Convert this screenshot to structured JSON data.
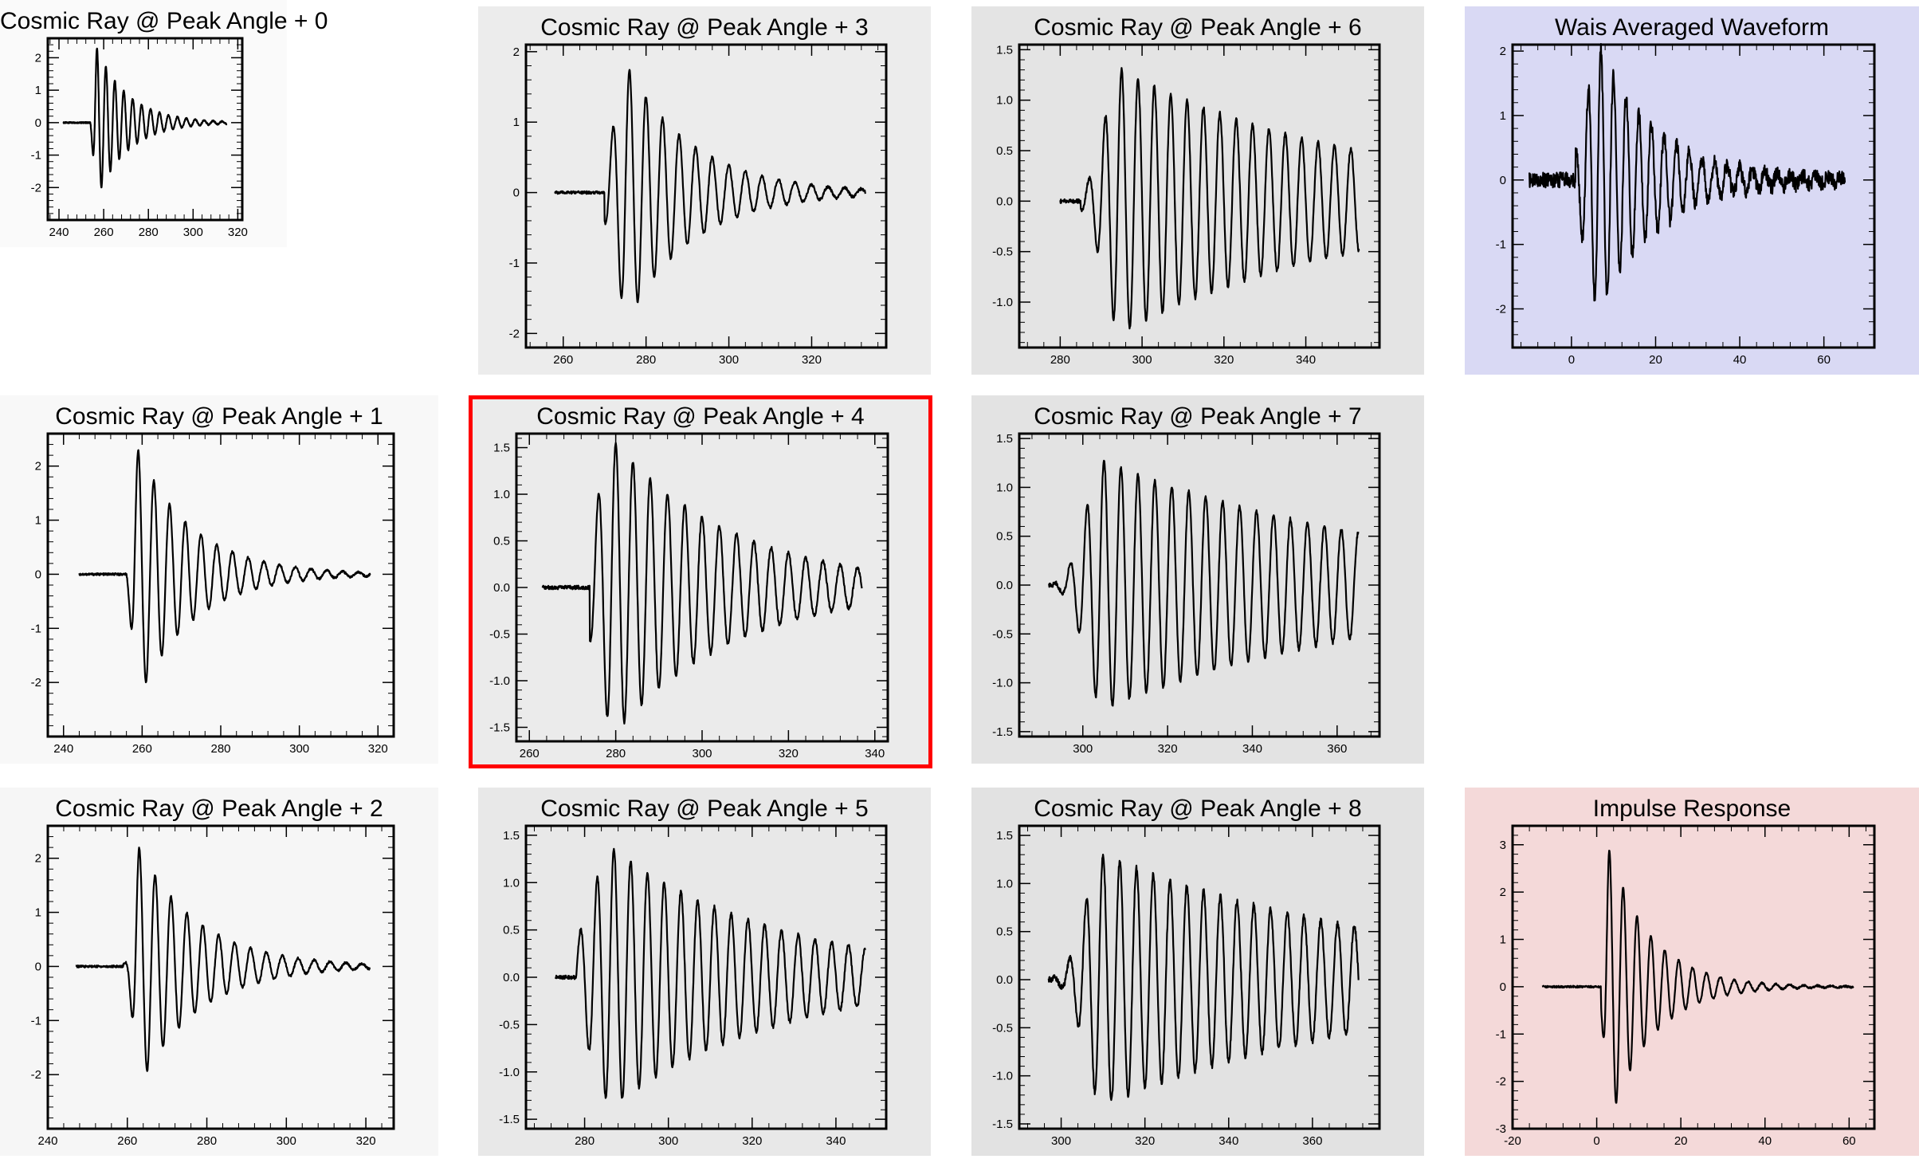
{
  "colors": {
    "highlight": "#ff0000",
    "trace": "#000000"
  },
  "chart_data": [
    {
      "id": 0,
      "type": "line",
      "title": "Cosmic Ray @ Peak Angle + 0",
      "background": "#fafafa",
      "xlim": [
        235,
        322
      ],
      "ylim": [
        -3,
        2.6
      ],
      "xticks": [
        "240",
        "260",
        "280",
        "300",
        "320"
      ],
      "yticks": [
        "2",
        "1",
        "0",
        "-1",
        "-2"
      ],
      "ytick_values": [
        2,
        1,
        0,
        -1,
        -2
      ],
      "xtick_values": [
        240,
        260,
        280,
        300,
        320
      ],
      "wave": {
        "x_start": 242,
        "x_onset": 254,
        "peak_x": 257,
        "period": 4.0,
        "amp": 2.3,
        "decay": 14,
        "x_end": 315,
        "rise": 2,
        "noise": 0.02
      }
    },
    {
      "id": 1,
      "type": "line",
      "title": "Cosmic Ray @ Peak Angle + 1",
      "background": "#f8f8f8",
      "xlim": [
        236,
        324
      ],
      "ylim": [
        -3,
        2.6
      ],
      "xticks": [
        "240",
        "260",
        "280",
        "300",
        "320"
      ],
      "yticks": [
        "2",
        "1",
        "0",
        "-1",
        "-2"
      ],
      "ytick_values": [
        2,
        1,
        0,
        -1,
        -2
      ],
      "xtick_values": [
        240,
        260,
        280,
        300,
        320
      ],
      "wave": {
        "x_start": 244,
        "x_onset": 256,
        "peak_x": 259,
        "period": 4.0,
        "amp": 2.3,
        "decay": 14,
        "x_end": 318,
        "rise": 2,
        "noise": 0.02
      }
    },
    {
      "id": 2,
      "type": "line",
      "title": "Cosmic Ray @ Peak Angle + 2",
      "background": "#f6f6f6",
      "xlim": [
        240,
        327
      ],
      "ylim": [
        -3,
        2.6
      ],
      "xticks": [
        "240",
        "260",
        "280",
        "300",
        "320"
      ],
      "yticks": [
        "2",
        "1",
        "0",
        "-1",
        "-2"
      ],
      "ytick_values": [
        2,
        1,
        0,
        -1,
        -2
      ],
      "xtick_values": [
        240,
        260,
        280,
        300,
        320
      ],
      "wave": {
        "x_start": 247,
        "x_onset": 259,
        "peak_x": 263,
        "period": 4.0,
        "amp": 2.2,
        "decay": 15,
        "x_end": 321,
        "rise": 2,
        "noise": 0.02
      }
    },
    {
      "id": 3,
      "type": "line",
      "title": "Cosmic Ray @ Peak Angle + 3",
      "background": "#ececec",
      "xlim": [
        251,
        338
      ],
      "ylim": [
        -2.2,
        2.1
      ],
      "xticks": [
        "260",
        "280",
        "300",
        "320"
      ],
      "yticks": [
        "2",
        "1",
        "0",
        "-1",
        "-2"
      ],
      "ytick_values": [
        2,
        1,
        0,
        -1,
        -2
      ],
      "xtick_values": [
        260,
        280,
        300,
        320
      ],
      "wave": {
        "x_start": 258,
        "x_onset": 270,
        "peak_x": 276,
        "period": 4.0,
        "amp": 1.75,
        "decay": 16,
        "x_end": 333,
        "rise": 5,
        "noise": 0.02
      }
    },
    {
      "id": 4,
      "type": "line",
      "title": "Cosmic Ray @ Peak Angle + 4",
      "background": "#ebebeb",
      "xlim": [
        257,
        343
      ],
      "ylim": [
        -1.65,
        1.65
      ],
      "xticks": [
        "260",
        "280",
        "300",
        "320",
        "340"
      ],
      "yticks": [
        "1.5",
        "1.0",
        "0.5",
        "0.0",
        "-0.5",
        "-1.0",
        "-1.5"
      ],
      "ytick_values": [
        1.5,
        1.0,
        0.5,
        0.0,
        -0.5,
        -1.0,
        -1.5
      ],
      "xtick_values": [
        260,
        280,
        300,
        320,
        340
      ],
      "wave": {
        "x_start": 263,
        "x_onset": 274,
        "peak_x": 280,
        "period": 4.0,
        "amp": 1.55,
        "decay": 28,
        "x_end": 337,
        "rise": 6,
        "noise": 0.02
      }
    },
    {
      "id": 5,
      "type": "line",
      "title": "Cosmic Ray @ Peak Angle + 5",
      "background": "#e8e8e8",
      "xlim": [
        266,
        352
      ],
      "ylim": [
        -1.6,
        1.6
      ],
      "xticks": [
        "280",
        "300",
        "320",
        "340"
      ],
      "yticks": [
        "1.5",
        "1.0",
        "0.5",
        "0.0",
        "-0.5",
        "-1.0",
        "-1.5"
      ],
      "ytick_values": [
        1.5,
        1.0,
        0.5,
        0.0,
        -0.5,
        -1.0,
        -1.5
      ],
      "xtick_values": [
        280,
        300,
        320,
        340
      ],
      "wave": {
        "x_start": 273,
        "x_onset": 278,
        "peak_x": 287,
        "period": 4.0,
        "amp": 1.35,
        "decay": 40,
        "x_end": 347,
        "rise": 8,
        "noise": 0.02
      }
    },
    {
      "id": 6,
      "type": "line",
      "title": "Cosmic Ray @ Peak Angle + 6",
      "background": "#e4e4e4",
      "xlim": [
        270,
        358
      ],
      "ylim": [
        -1.45,
        1.55
      ],
      "xticks": [
        "280",
        "300",
        "320",
        "340"
      ],
      "yticks": [
        "1.5",
        "1.0",
        "0.5",
        "0.0",
        "-0.5",
        "-1.0"
      ],
      "ytick_values": [
        1.5,
        1.0,
        0.5,
        0.0,
        -0.5,
        -1.0
      ],
      "xtick_values": [
        280,
        300,
        320,
        340
      ],
      "wave": {
        "x_start": 280,
        "x_onset": 285,
        "peak_x": 295,
        "period": 4.0,
        "amp": 1.3,
        "decay": 60,
        "x_end": 353,
        "rise": 6,
        "noise": 0.02
      }
    },
    {
      "id": 7,
      "type": "line",
      "title": "Cosmic Ray @ Peak Angle + 7",
      "background": "#e3e3e3",
      "xlim": [
        285,
        370
      ],
      "ylim": [
        -1.55,
        1.55
      ],
      "xticks": [
        "300",
        "320",
        "340",
        "360"
      ],
      "yticks": [
        "1.5",
        "1.0",
        "0.5",
        "0.0",
        "-0.5",
        "-1.0",
        "-1.5"
      ],
      "ytick_values": [
        1.5,
        1.0,
        0.5,
        0.0,
        -0.5,
        -1.0,
        -1.5
      ],
      "xtick_values": [
        300,
        320,
        340,
        360
      ],
      "wave": {
        "x_start": 292,
        "x_onset": 293,
        "peak_x": 305,
        "period": 4.0,
        "amp": 1.27,
        "decay": 70,
        "x_end": 365,
        "rise": 6,
        "noise": 0.02
      }
    },
    {
      "id": 8,
      "type": "line",
      "title": "Cosmic Ray @ Peak Angle + 8",
      "background": "#e2e2e2",
      "xlim": [
        290,
        376
      ],
      "ylim": [
        -1.55,
        1.6
      ],
      "xticks": [
        "300",
        "320",
        "340",
        "360"
      ],
      "yticks": [
        "1.5",
        "1.0",
        "0.5",
        "0.0",
        "-0.5",
        "-1.0",
        "-1.5"
      ],
      "ytick_values": [
        1.5,
        1.0,
        0.5,
        0.0,
        -0.5,
        -1.0,
        -1.5
      ],
      "xtick_values": [
        300,
        320,
        340,
        360
      ],
      "wave": {
        "x_start": 297,
        "x_onset": 298,
        "peak_x": 310,
        "period": 4.0,
        "amp": 1.3,
        "decay": 70,
        "x_end": 371,
        "rise": 6,
        "noise": 0.03
      }
    },
    {
      "id": 9,
      "type": "line",
      "title": "Wais Averaged Waveform",
      "background": "#d9d9f4",
      "xlim": [
        -14,
        72
      ],
      "ylim": [
        -2.6,
        2.1
      ],
      "xticks": [
        "0",
        "20",
        "40",
        "60"
      ],
      "yticks": [
        "2",
        "1",
        "0",
        "-1",
        "-2"
      ],
      "ytick_values": [
        2,
        1,
        0,
        -1,
        -2
      ],
      "xtick_values": [
        0,
        20,
        40,
        60
      ],
      "wave": {
        "x_start": -10,
        "x_onset": 1,
        "peak_x": 7,
        "period": 3.0,
        "amp": 2.0,
        "decay": 14,
        "x_end": 65,
        "rise": 5,
        "noise": 0.12
      }
    },
    {
      "id": 10,
      "type": "line",
      "title": "Impulse Response",
      "background": "#f4d9d9",
      "xlim": [
        -20,
        66
      ],
      "ylim": [
        -3,
        3.4
      ],
      "xticks": [
        "-20",
        "0",
        "20",
        "40",
        "60"
      ],
      "yticks": [
        "3",
        "2",
        "1",
        "0",
        "-1",
        "-2",
        "-3"
      ],
      "ytick_values": [
        3,
        2,
        1,
        0,
        -1,
        -2,
        -3
      ],
      "xtick_values": [
        -20,
        0,
        20,
        40,
        60
      ],
      "wave": {
        "x_start": -13,
        "x_onset": 1,
        "peak_x": 3,
        "period": 3.3,
        "amp": 2.9,
        "decay": 10,
        "x_end": 61,
        "rise": 1.5,
        "noise": 0.02
      }
    }
  ]
}
